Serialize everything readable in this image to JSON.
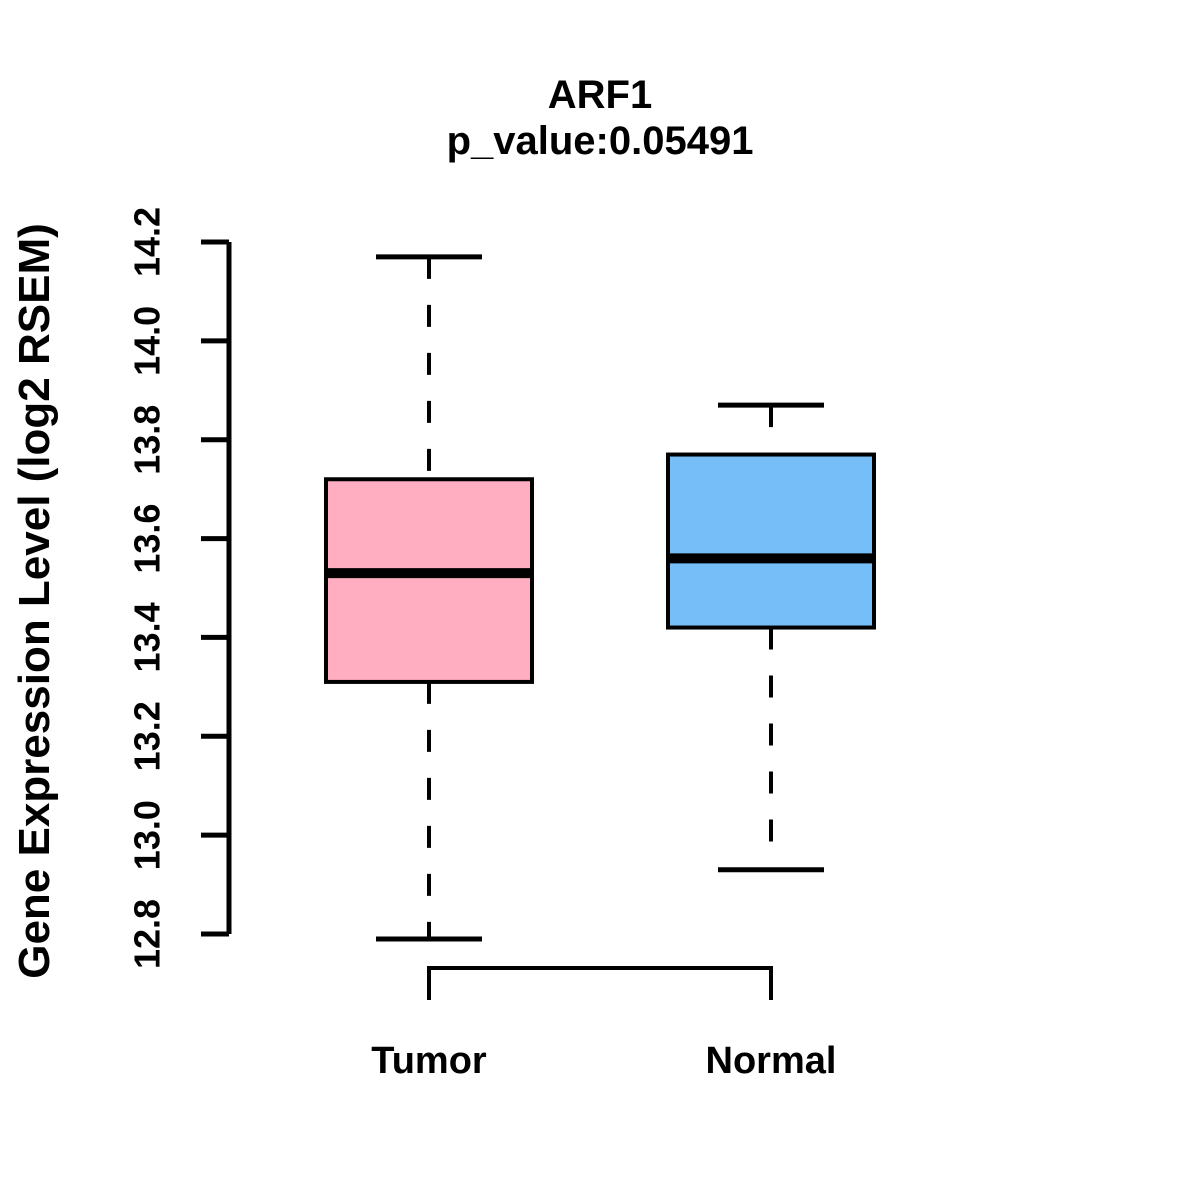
{
  "header": {
    "gene": "ARF1",
    "p_value_text": "p_value:0.05491"
  },
  "chart_data": {
    "type": "boxplot",
    "title": "ARF1",
    "subtitle": "p_value:0.05491",
    "ylabel": "Gene Expression Level (log2 RSEM)",
    "xlabel": "",
    "categories": [
      "Tumor",
      "Normal"
    ],
    "series": [
      {
        "name": "Tumor",
        "color": "#FFAEC1",
        "whisker_low": 12.79,
        "q1": 13.31,
        "median": 13.53,
        "q3": 13.72,
        "whisker_high": 14.17
      },
      {
        "name": "Normal",
        "color": "#75BEF8",
        "whisker_low": 12.93,
        "q1": 13.42,
        "median": 13.56,
        "q3": 13.77,
        "whisker_high": 13.87
      }
    ],
    "ylim": [
      12.8,
      14.2
    ],
    "yticks": [
      12.8,
      13.0,
      13.2,
      13.4,
      13.6,
      13.8,
      14.0,
      14.2
    ],
    "grid": false,
    "legend": "none",
    "whisker_style": "dashed",
    "stroke_color": "#000000",
    "background_color": "#FFFFFF"
  }
}
